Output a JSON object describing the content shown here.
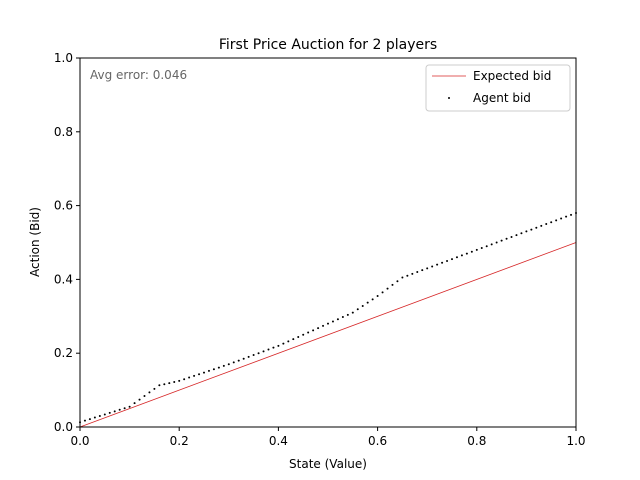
{
  "chart_data": {
    "type": "scatter",
    "title": "First Price Auction for 2 players",
    "xlabel": "State (Value)",
    "ylabel": "Action (Bid)",
    "xlim": [
      0.0,
      1.0
    ],
    "ylim": [
      0.0,
      1.0
    ],
    "x_ticks": [
      "0.0",
      "0.2",
      "0.4",
      "0.6",
      "0.8",
      "1.0"
    ],
    "y_ticks": [
      "0.0",
      "0.2",
      "0.4",
      "0.6",
      "0.8",
      "1.0"
    ],
    "grid": false,
    "legend_position": "top-right",
    "annotation": "Avg error: 0.046",
    "series": [
      {
        "name": "Expected bid",
        "kind": "line",
        "color": "#d62728",
        "x": [
          0.0,
          1.0
        ],
        "y": [
          0.0,
          0.5
        ]
      },
      {
        "name": "Agent bid",
        "kind": "scatter",
        "color": "#000000",
        "points": [
          [
            0.0,
            0.013
          ],
          [
            0.1,
            0.055
          ],
          [
            0.16,
            0.113
          ],
          [
            0.2,
            0.125
          ],
          [
            0.3,
            0.17
          ],
          [
            0.4,
            0.22
          ],
          [
            0.5,
            0.28
          ],
          [
            0.55,
            0.31
          ],
          [
            0.6,
            0.355
          ],
          [
            0.65,
            0.405
          ],
          [
            0.7,
            0.43
          ],
          [
            0.8,
            0.48
          ],
          [
            0.9,
            0.53
          ],
          [
            1.0,
            0.58
          ]
        ]
      }
    ]
  }
}
